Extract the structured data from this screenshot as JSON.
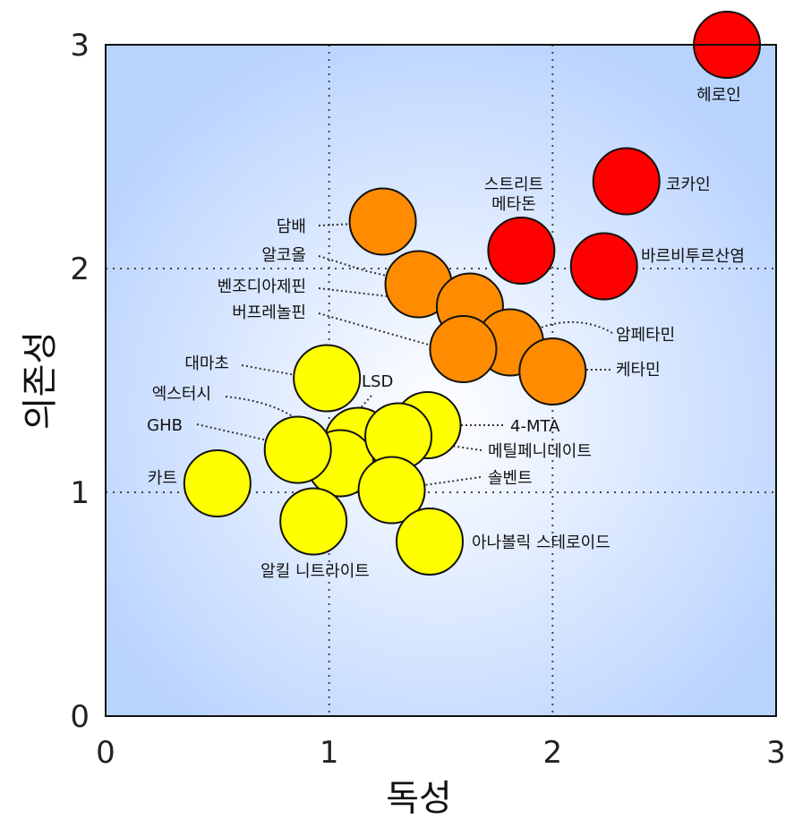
{
  "chart_data": {
    "type": "scatter",
    "title": "",
    "xlabel": "독성",
    "ylabel": "의존성",
    "xlim": [
      0,
      3
    ],
    "ylim": [
      0,
      3
    ],
    "xticks": [
      "0",
      "1",
      "2",
      "3"
    ],
    "yticks": [
      "0",
      "1",
      "2",
      "3"
    ],
    "grid": true,
    "colors": {
      "high": "#ff0000",
      "medium": "#ff8c00",
      "low": "#ffff00",
      "background_center": "#ffffff",
      "background_edge": "#b9d3ff"
    },
    "points": [
      {
        "label": "헤로인",
        "x": 2.78,
        "y": 3.0,
        "group": "high"
      },
      {
        "label": "코카인",
        "x": 2.33,
        "y": 2.39,
        "group": "high"
      },
      {
        "label": "바르비투르산염",
        "x": 2.23,
        "y": 2.01,
        "group": "high"
      },
      {
        "label": "스트리트\n메타돈",
        "x": 1.86,
        "y": 2.08,
        "group": "high"
      },
      {
        "label": "담배",
        "x": 1.24,
        "y": 2.21,
        "group": "medium"
      },
      {
        "label": "알코올",
        "x": 1.4,
        "y": 1.93,
        "group": "medium"
      },
      {
        "label": "벤조디아제핀",
        "x": 1.63,
        "y": 1.83,
        "group": "medium"
      },
      {
        "label": "암페타민",
        "x": 1.81,
        "y": 1.67,
        "group": "medium"
      },
      {
        "label": "버프레놀핀",
        "x": 1.6,
        "y": 1.64,
        "group": "medium"
      },
      {
        "label": "케타민",
        "x": 2.0,
        "y": 1.54,
        "group": "medium"
      },
      {
        "label": "대마초",
        "x": 0.99,
        "y": 1.51,
        "group": "low"
      },
      {
        "label": "LSD",
        "x": 1.13,
        "y": 1.23,
        "group": "low"
      },
      {
        "label": "4-MTA",
        "x": 1.44,
        "y": 1.3,
        "group": "low"
      },
      {
        "label": "엑스터시",
        "x": 1.05,
        "y": 1.13,
        "group": "low"
      },
      {
        "label": "GHB",
        "x": 0.86,
        "y": 1.19,
        "group": "low"
      },
      {
        "label": "메틸페니데이트",
        "x": 1.31,
        "y": 1.25,
        "group": "low"
      },
      {
        "label": "솔벤트",
        "x": 1.28,
        "y": 1.01,
        "group": "low"
      },
      {
        "label": "카트",
        "x": 0.5,
        "y": 1.04,
        "group": "low"
      },
      {
        "label": "알킬 니트라이트",
        "x": 0.93,
        "y": 0.87,
        "group": "low"
      },
      {
        "label": "아나볼릭 스테로이드",
        "x": 1.45,
        "y": 0.78,
        "group": "low"
      }
    ]
  }
}
